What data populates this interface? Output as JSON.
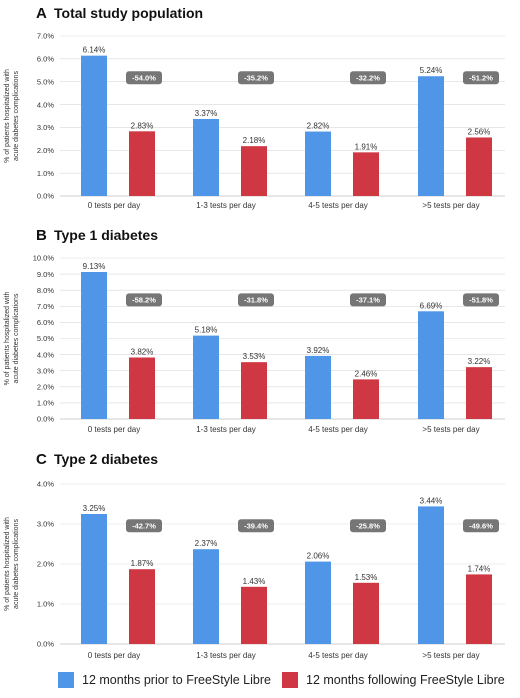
{
  "colors": {
    "prior": "#4f95e8",
    "following": "#cf3743",
    "badge": "#767676"
  },
  "legend": {
    "prior": "12 months prior to FreeStyle Libre",
    "following": "12 months following FreeStyle Libre"
  },
  "chart_data": [
    {
      "type": "bar",
      "letter": "A",
      "title": "Total study population",
      "ylabel_line1": "% of patients hospitalized with",
      "ylabel_line2": "acute diabetes complications",
      "ylim": [
        0,
        7
      ],
      "yticks": [
        "0.0%",
        "1.0%",
        "2.0%",
        "3.0%",
        "4.0%",
        "5.0%",
        "6.0%",
        "7.0%"
      ],
      "categories": [
        "0 tests per day",
        "1-3 tests per day",
        "4-5 tests per day",
        ">5 tests per day"
      ],
      "series": [
        {
          "values": [
            6.14,
            3.37,
            2.82,
            5.24
          ],
          "labels": [
            "6.14%",
            "3.37%",
            "2.82%",
            "5.24%"
          ]
        },
        {
          "values": [
            2.83,
            2.18,
            1.91,
            2.56
          ],
          "labels": [
            "2.83%",
            "2.18%",
            "1.91%",
            "2.56%"
          ]
        }
      ],
      "changes": [
        "-54.0%",
        "-35.2%",
        "-32.2%",
        "-51.2%"
      ],
      "grid": true
    },
    {
      "type": "bar",
      "letter": "B",
      "title": "Type 1 diabetes",
      "ylabel_line1": "% of patients hospitalized with",
      "ylabel_line2": "acute diabetes complications",
      "ylim": [
        0,
        10
      ],
      "yticks": [
        "0.0%",
        "1.0%",
        "2.0%",
        "3.0%",
        "4.0%",
        "5.0%",
        "6.0%",
        "7.0%",
        "8.0%",
        "9.0%",
        "10.0%"
      ],
      "categories": [
        "0 tests per day",
        "1-3 tests per day",
        "4-5 tests per day",
        ">5 tests per day"
      ],
      "series": [
        {
          "values": [
            9.13,
            5.18,
            3.92,
            6.69
          ],
          "labels": [
            "9.13%",
            "5.18%",
            "3.92%",
            "6.69%"
          ]
        },
        {
          "values": [
            3.82,
            3.53,
            2.46,
            3.22
          ],
          "labels": [
            "3.82%",
            "3.53%",
            "2.46%",
            "3.22%"
          ]
        }
      ],
      "changes": [
        "-58.2%",
        "-31.8%",
        "-37.1%",
        "-51.8%"
      ],
      "grid": true
    },
    {
      "type": "bar",
      "letter": "C",
      "title": "Type 2 diabetes",
      "ylabel_line1": "% of patients hospitalized with",
      "ylabel_line2": "acute diabetes complications",
      "ylim": [
        0,
        4
      ],
      "yticks": [
        "0.0%",
        "1.0%",
        "2.0%",
        "3.0%",
        "4.0%"
      ],
      "categories": [
        "0 tests per day",
        "1-3 tests per day",
        "4-5 tests per day",
        ">5 tests per day"
      ],
      "series": [
        {
          "values": [
            3.25,
            2.37,
            2.06,
            3.44
          ],
          "labels": [
            "3.25%",
            "2.37%",
            "2.06%",
            "3.44%"
          ]
        },
        {
          "values": [
            1.87,
            1.43,
            1.53,
            1.74
          ],
          "labels": [
            "1.87%",
            "1.43%",
            "1.53%",
            "1.74%"
          ]
        }
      ],
      "changes": [
        "-42.7%",
        "-39.4%",
        "-25.8%",
        "-49.6%"
      ],
      "grid": true
    }
  ]
}
